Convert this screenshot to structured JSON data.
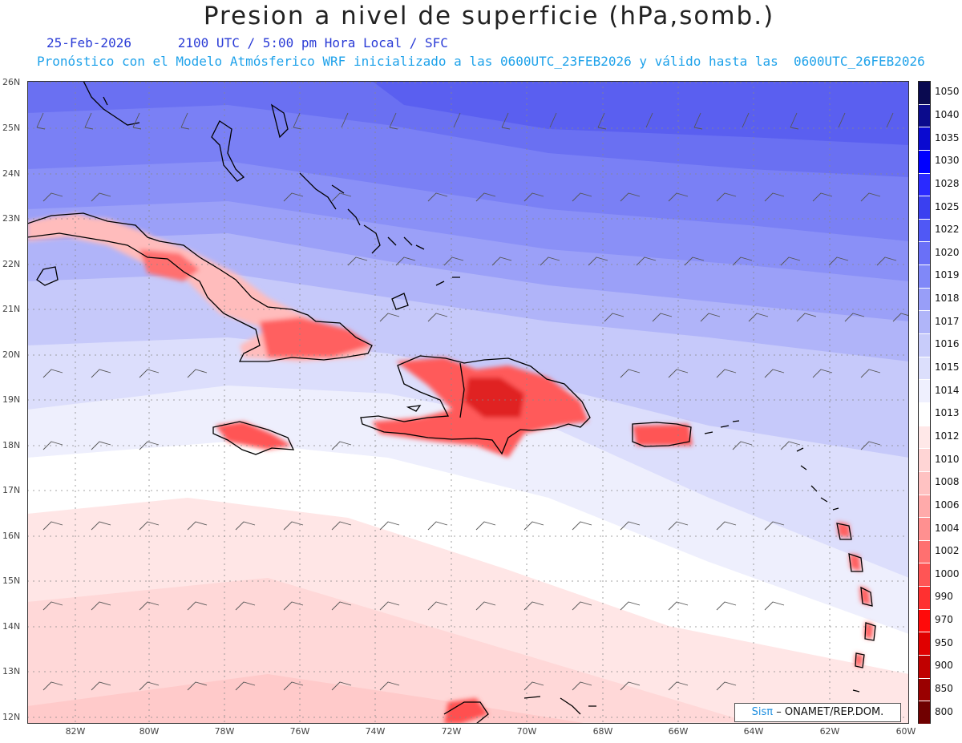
{
  "header": {
    "title": "Presion a nivel de superficie (hPa,somb.)",
    "date": "25-Feb-2026",
    "time_info": "2100 UTC / 5:00 pm Hora Local / SFC",
    "model_info": "Pronóstico con el Modelo Atmósferico WRF inicializado a las 0600UTC_23FEB2026 y válido hasta las  0600UTC_26FEB2026"
  },
  "map": {
    "lat_labels": [
      "26N",
      "25N",
      "24N",
      "23N",
      "22N",
      "21N",
      "20N",
      "19N",
      "18N",
      "17N",
      "16N",
      "15N",
      "14N",
      "13N",
      "12N"
    ],
    "lon_labels": [
      "82W",
      "80W",
      "78W",
      "76W",
      "74W",
      "72W",
      "70W",
      "68W",
      "66W",
      "64W",
      "62W",
      "60W"
    ]
  },
  "colorbar": {
    "labels": [
      "1050",
      "1040",
      "1035",
      "1030",
      "1028",
      "1025",
      "1022",
      "1020",
      "1019",
      "1018",
      "1017",
      "1016",
      "1015",
      "1014",
      "1013",
      "1012",
      "1010",
      "1008",
      "1006",
      "1004",
      "1002",
      "1000",
      "990",
      "970",
      "950",
      "900",
      "850",
      "800"
    ],
    "colors": [
      "#0a0a50",
      "#0b0b8c",
      "#0a0ad0",
      "#0000ff",
      "#2a2aff",
      "#3a40f0",
      "#5058f5",
      "#6a70f7",
      "#8088f8",
      "#989ef8",
      "#b0b5f9",
      "#c8ccfa",
      "#dcdffc",
      "#eff0fe",
      "#ffffff",
      "#ffe8e8",
      "#ffd5d5",
      "#ffc2c2",
      "#ffaaaa",
      "#ff9090",
      "#ff7070",
      "#ff5555",
      "#ff3030",
      "#ff0a0a",
      "#e00000",
      "#c00000",
      "#9a0000",
      "#700000"
    ]
  },
  "credit": {
    "brand": "Sisπ",
    "text": "– ONAMET/REP.DOM."
  }
}
